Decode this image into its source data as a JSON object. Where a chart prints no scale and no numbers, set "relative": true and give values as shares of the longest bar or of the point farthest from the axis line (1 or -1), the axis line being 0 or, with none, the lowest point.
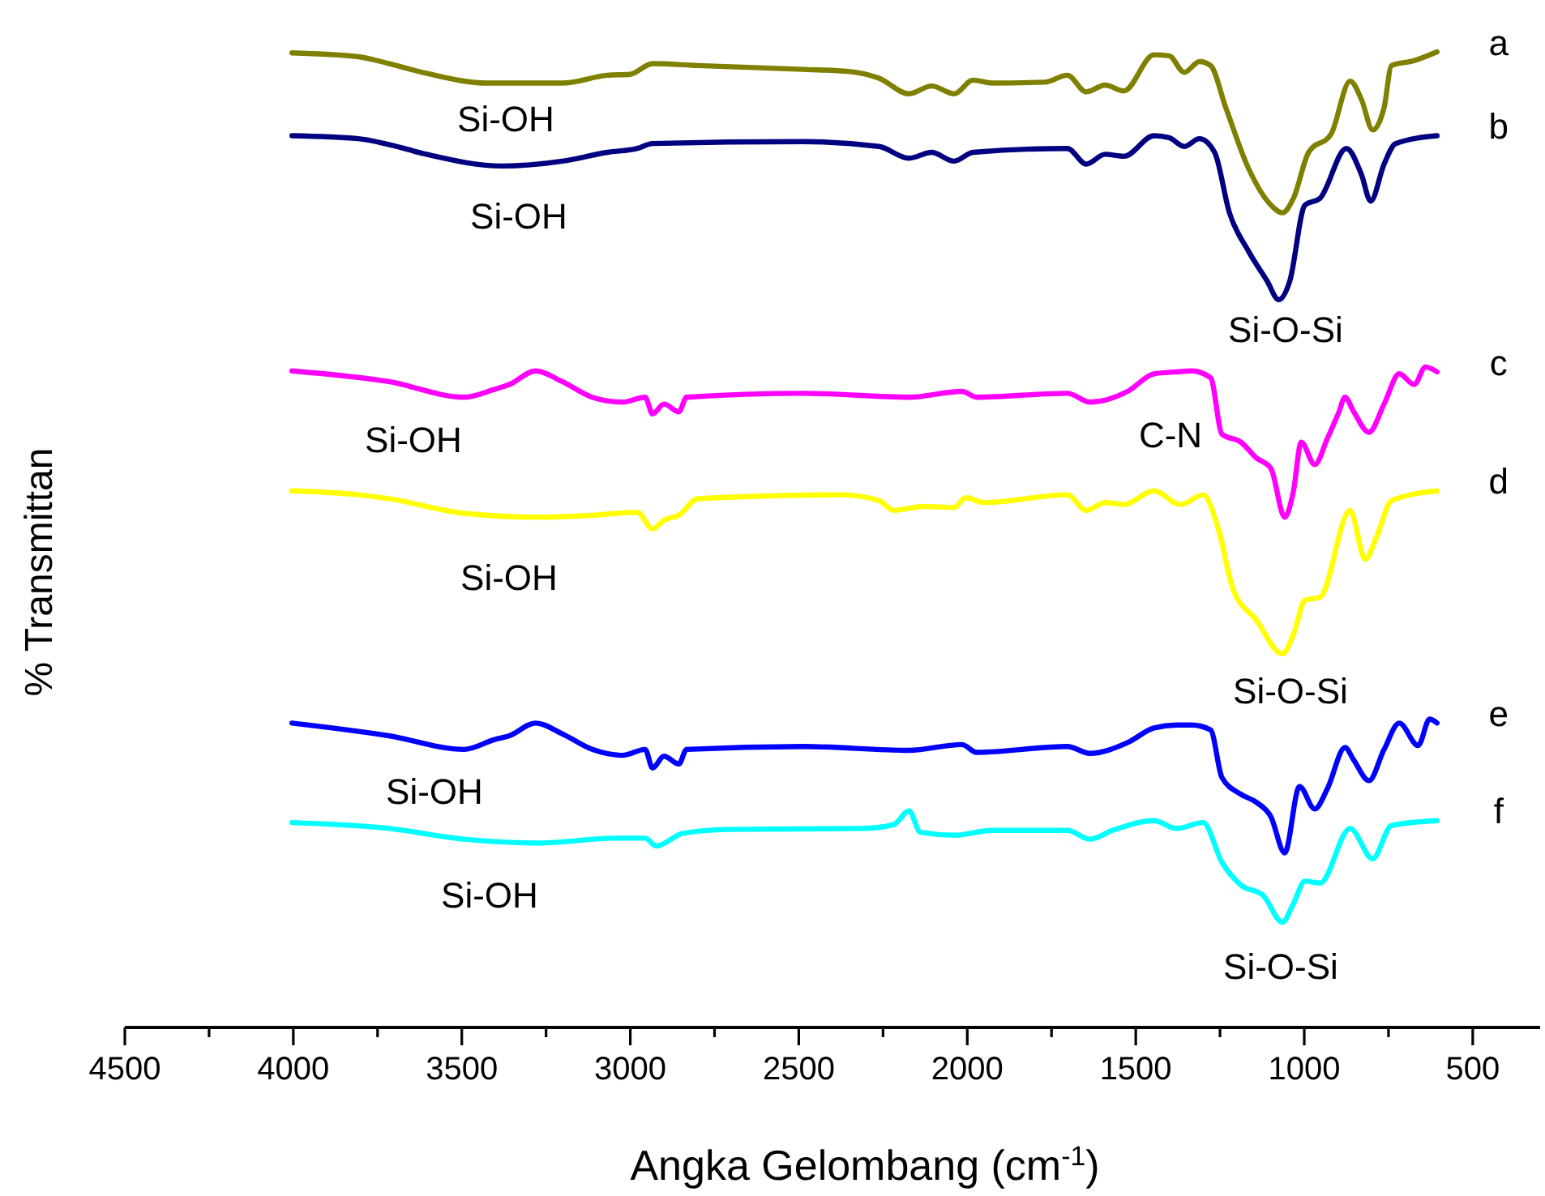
{
  "chart_data": {
    "type": "line",
    "relative": true,
    "xlabel": "Angka Gelombang (cm$^{-1}$)",
    "ylabel": "% Transmittan",
    "xlim": [
      4500,
      300
    ],
    "xticks": [
      4500,
      {
        "value": 4250,
        "label": null
      },
      4000,
      {
        "value": 3750,
        "label": null
      },
      3500,
      {
        "value": 3250,
        "label": null
      },
      3000,
      {
        "value": 2750,
        "label": null
      },
      2500,
      {
        "value": 2250,
        "label": null
      },
      2000,
      {
        "value": 1750,
        "label": null
      },
      1500,
      {
        "value": 1250,
        "label": null
      },
      1000,
      {
        "value": 750,
        "label": null
      },
      500
    ],
    "grid": false,
    "marker": "none",
    "line_style": "solid",
    "series": [
      {
        "name": "a",
        "color": "#808000",
        "x": [
          4004,
          3807,
          3717,
          3605,
          3426,
          3202,
          3068,
          3001,
          2934,
          2800,
          2486,
          2352,
          2262,
          2173,
          2106,
          2039,
          1983,
          1927,
          1770,
          1703,
          1647,
          1591,
          1535,
          1446,
          1401,
          1356,
          1311,
          1278,
          1233,
          1166,
          1099,
          1065,
          1032,
          987,
          920,
          864,
          830,
          797,
          763,
          741,
          674,
          606
        ],
        "values": [
          0.999,
          0.995,
          0.988,
          0.978,
          0.968,
          0.968,
          0.976,
          0.977,
          0.988,
          0.986,
          0.982,
          0.98,
          0.973,
          0.957,
          0.965,
          0.957,
          0.971,
          0.968,
          0.969,
          0.976,
          0.959,
          0.966,
          0.96,
          0.997,
          0.996,
          0.979,
          0.99,
          0.986,
          0.943,
          0.881,
          0.843,
          0.835,
          0.85,
          0.897,
          0.916,
          0.97,
          0.951,
          0.92,
          0.943,
          0.986,
          0.991,
          1.0
        ]
      },
      {
        "name": "b",
        "color": "#000080",
        "x": [
          4004,
          3807,
          3717,
          3605,
          3381,
          3202,
          3068,
          2979,
          2934,
          2486,
          2262,
          2173,
          2106,
          2039,
          1983,
          1703,
          1647,
          1591,
          1535,
          1446,
          1401,
          1356,
          1311,
          1266,
          1222,
          1166,
          1110,
          1076,
          1043,
          998,
          953,
          875,
          830,
          803,
          763,
          729,
          606
        ],
        "values": [
          0.914,
          0.911,
          0.905,
          0.895,
          0.883,
          0.888,
          0.897,
          0.901,
          0.906,
          0.908,
          0.903,
          0.891,
          0.897,
          0.888,
          0.897,
          0.901,
          0.885,
          0.895,
          0.893,
          0.914,
          0.912,
          0.903,
          0.911,
          0.897,
          0.835,
          0.796,
          0.765,
          0.746,
          0.765,
          0.843,
          0.85,
          0.901,
          0.874,
          0.847,
          0.885,
          0.906,
          0.914
        ]
      },
      {
        "name": "c",
        "color": "#ff00ff",
        "x": [
          4004,
          3717,
          3493,
          3404,
          3359,
          3281,
          3202,
          3113,
          3023,
          2956,
          2934,
          2900,
          2856,
          2833,
          2486,
          2173,
          2016,
          1972,
          1703,
          1636,
          1524,
          1446,
          1379,
          1334,
          1278,
          1244,
          1188,
          1143,
          1099,
          1058,
          1032,
          1009,
          969,
          931,
          897,
          879,
          853,
          808,
          763,
          718,
          674,
          640,
          606
        ],
        "values": [
          0.673,
          0.662,
          0.646,
          0.654,
          0.659,
          0.673,
          0.662,
          0.646,
          0.641,
          0.646,
          0.629,
          0.639,
          0.631,
          0.646,
          0.65,
          0.646,
          0.652,
          0.646,
          0.65,
          0.641,
          0.652,
          0.67,
          0.672,
          0.673,
          0.666,
          0.608,
          0.6,
          0.584,
          0.573,
          0.523,
          0.55,
          0.6,
          0.577,
          0.604,
          0.631,
          0.646,
          0.631,
          0.61,
          0.639,
          0.67,
          0.659,
          0.677,
          0.672
        ]
      },
      {
        "name": "d",
        "color": "#ffff00",
        "x": [
          4004,
          3807,
          3717,
          3493,
          3269,
          3113,
          2979,
          2934,
          2900,
          2856,
          2800,
          2374,
          2262,
          2218,
          2128,
          2039,
          2005,
          1949,
          1703,
          1647,
          1591,
          1535,
          1446,
          1367,
          1300,
          1255,
          1211,
          1143,
          1065,
          1032,
          998,
          953,
          864,
          819,
          785,
          741,
          606
        ],
        "values": [
          0.55,
          0.546,
          0.542,
          0.527,
          0.523,
          0.525,
          0.528,
          0.511,
          0.52,
          0.525,
          0.542,
          0.546,
          0.54,
          0.53,
          0.534,
          0.533,
          0.543,
          0.538,
          0.546,
          0.53,
          0.538,
          0.536,
          0.55,
          0.536,
          0.546,
          0.511,
          0.449,
          0.418,
          0.383,
          0.403,
          0.438,
          0.441,
          0.53,
          0.48,
          0.503,
          0.54,
          0.55
        ]
      },
      {
        "name": "e",
        "color": "#0000ff",
        "x": [
          4004,
          3717,
          3493,
          3404,
          3359,
          3281,
          3202,
          3113,
          3023,
          2956,
          2934,
          2900,
          2856,
          2833,
          2486,
          2173,
          2016,
          1972,
          1703,
          1636,
          1524,
          1446,
          1379,
          1334,
          1278,
          1244,
          1188,
          1143,
          1099,
          1058,
          1014,
          969,
          931,
          879,
          853,
          808,
          763,
          718,
          662,
          628,
          606
        ],
        "values": [
          0.312,
          0.299,
          0.285,
          0.295,
          0.299,
          0.312,
          0.301,
          0.285,
          0.279,
          0.285,
          0.266,
          0.278,
          0.27,
          0.285,
          0.288,
          0.284,
          0.29,
          0.282,
          0.288,
          0.281,
          0.292,
          0.307,
          0.31,
          0.31,
          0.305,
          0.256,
          0.239,
          0.231,
          0.216,
          0.179,
          0.247,
          0.224,
          0.245,
          0.287,
          0.274,
          0.253,
          0.285,
          0.312,
          0.289,
          0.316,
          0.312
        ]
      },
      {
        "name": "f",
        "color": "#00ffff",
        "x": [
          4004,
          3717,
          3493,
          3269,
          3046,
          2956,
          2923,
          2844,
          2710,
          2307,
          2218,
          2173,
          2139,
          2039,
          1927,
          1703,
          1636,
          1569,
          1446,
          1379,
          1300,
          1244,
          1188,
          1121,
          1065,
          1032,
          998,
          953,
          864,
          797,
          741,
          606
        ],
        "values": [
          0.21,
          0.204,
          0.193,
          0.189,
          0.194,
          0.194,
          0.186,
          0.199,
          0.203,
          0.204,
          0.208,
          0.222,
          0.2,
          0.197,
          0.202,
          0.202,
          0.193,
          0.202,
          0.212,
          0.204,
          0.21,
          0.169,
          0.146,
          0.135,
          0.108,
          0.127,
          0.15,
          0.148,
          0.204,
          0.173,
          0.207,
          0.212
        ]
      }
    ],
    "annotations": [
      "Si-OH",
      "Si-OH",
      "Si-O-Si",
      "Si-OH",
      "C-N",
      "Si-OH",
      "Si-O-Si",
      "Si-OH",
      "Si-OH",
      "Si-O-Si"
    ]
  }
}
